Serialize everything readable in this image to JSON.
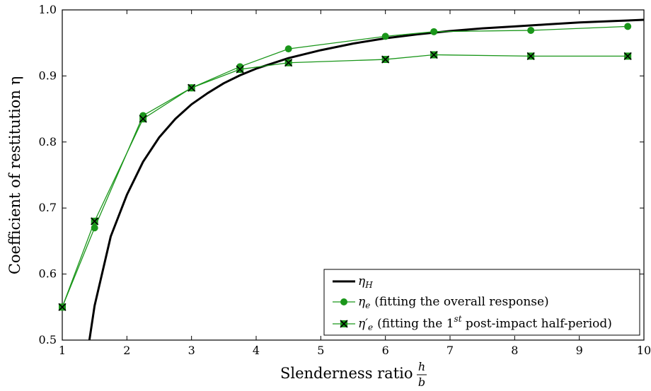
{
  "chart_data": {
    "type": "line",
    "title": "",
    "xlabel": "Slenderness ratio",
    "xlabel_fraction": {
      "numerator": "h",
      "denominator": "b"
    },
    "ylabel": "Coefficient of restitution η",
    "xlim": [
      1,
      10
    ],
    "ylim": [
      0.5,
      1.0
    ],
    "xticks": [
      1,
      2,
      3,
      4,
      5,
      6,
      7,
      8,
      9,
      10
    ],
    "yticks": [
      0.5,
      0.6,
      0.7,
      0.8,
      0.9,
      1.0
    ],
    "xtick_labels": [
      "1",
      "2",
      "3",
      "4",
      "5",
      "6",
      "7",
      "8",
      "9",
      "10"
    ],
    "ytick_labels": [
      "0.5",
      "0.6",
      "0.7",
      "0.8",
      "0.9",
      "1.0"
    ],
    "grid": false,
    "legend_position": "bottom-right",
    "series": [
      {
        "name": "ηH",
        "legend": {
          "symbol": "η",
          "subscript": "H",
          "text": ""
        },
        "style": "curve",
        "color": "#000000",
        "x": [
          1.42,
          1.5,
          1.75,
          2,
          2.25,
          2.5,
          2.75,
          3,
          3.25,
          3.5,
          3.75,
          4,
          4.5,
          5,
          5.5,
          6,
          6.5,
          7,
          7.5,
          8,
          8.5,
          9,
          9.5,
          10
        ],
        "y": [
          0.5,
          0.552,
          0.657,
          0.72,
          0.77,
          0.807,
          0.835,
          0.857,
          0.874,
          0.889,
          0.901,
          0.911,
          0.927,
          0.939,
          0.949,
          0.957,
          0.963,
          0.968,
          0.972,
          0.975,
          0.978,
          0.981,
          0.983,
          0.985
        ]
      },
      {
        "name": "ηe (fitting the overall response)",
        "legend": {
          "symbol": "η",
          "subscript": "e",
          "text": "(fitting the overall response)"
        },
        "style": "circle",
        "color": "#1a961a",
        "x": [
          1,
          1.5,
          2.25,
          3,
          3.75,
          4.5,
          6,
          6.75,
          8.25,
          9.75
        ],
        "y": [
          0.55,
          0.67,
          0.84,
          0.882,
          0.914,
          0.941,
          0.96,
          0.967,
          0.969,
          0.975
        ]
      },
      {
        "name": "η′e (fitting the 1st post-impact half-period)",
        "legend": {
          "symbol": "η′",
          "subscript": "e",
          "text": "(fitting the 1",
          "sup": "st",
          "text2": " post-impact half-period)"
        },
        "style": "xsquare",
        "color": "#1a961a",
        "x": [
          1,
          1.5,
          2.25,
          3,
          3.75,
          4.5,
          6,
          6.75,
          8.25,
          9.75
        ],
        "y": [
          0.55,
          0.68,
          0.835,
          0.882,
          0.91,
          0.92,
          0.925,
          0.932,
          0.93,
          0.93
        ]
      }
    ]
  }
}
